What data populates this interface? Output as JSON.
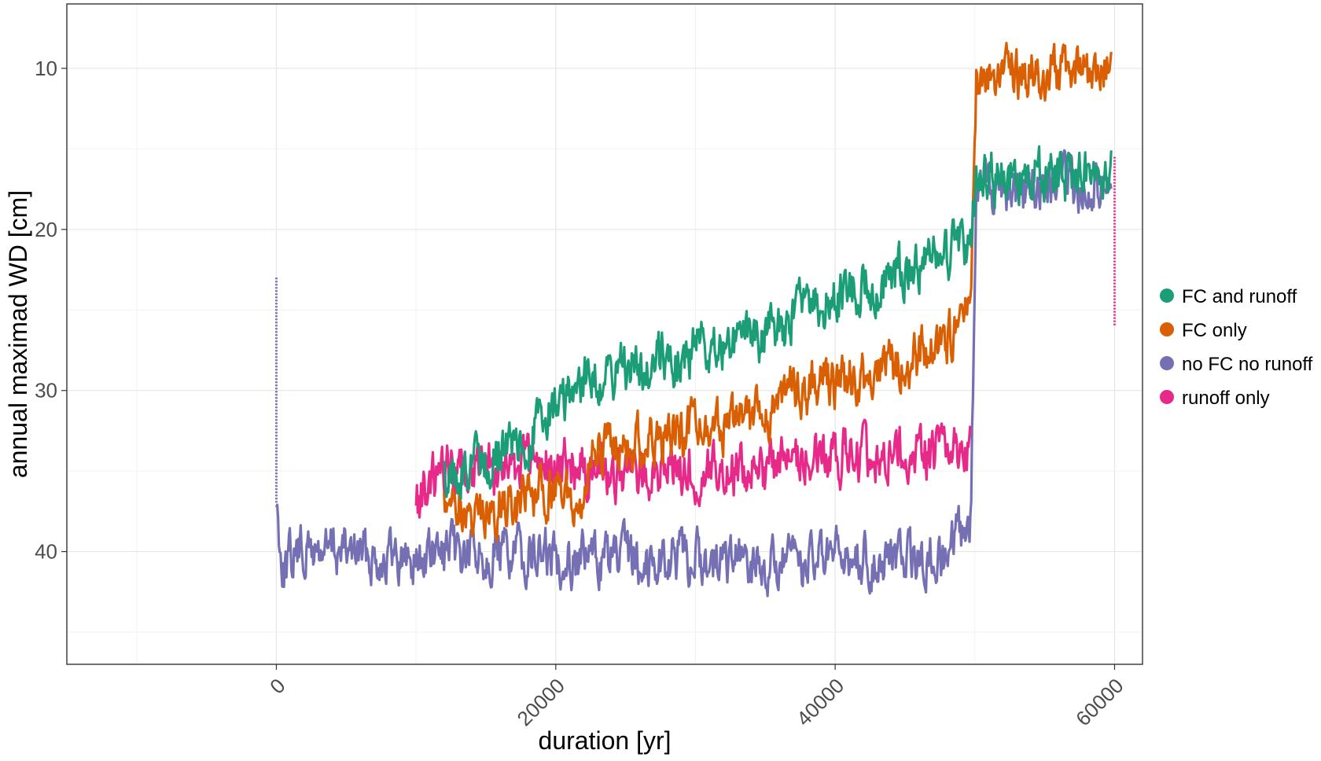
{
  "chart_data": {
    "type": "line",
    "title": "",
    "xlabel": "duration [yr]",
    "ylabel": "annual maximad WD [cm]",
    "x_range": [
      -15000,
      62000
    ],
    "y_range": [
      47,
      6
    ],
    "y_reversed": true,
    "x_ticks": [
      0,
      20000,
      40000,
      60000
    ],
    "x_tick_labels": [
      "0",
      "20000",
      "40000",
      "60000"
    ],
    "y_ticks": [
      10,
      20,
      30,
      40
    ],
    "y_tick_labels": [
      "10",
      "20",
      "30",
      "40"
    ],
    "grid": true,
    "legend_position": "right",
    "series": [
      {
        "name": "FC and runoff",
        "color": "#1b9e77",
        "start_x": 12000,
        "key_points": [
          [
            12000,
            35.5
          ],
          [
            15000,
            34.5
          ],
          [
            20000,
            31.5
          ],
          [
            22000,
            29.5
          ],
          [
            25000,
            28.5
          ],
          [
            30000,
            27.5
          ],
          [
            35000,
            26.5
          ],
          [
            38000,
            25
          ],
          [
            40000,
            24.5
          ],
          [
            45000,
            22.5
          ],
          [
            48000,
            21.5
          ],
          [
            49700,
            20.5
          ],
          [
            50100,
            16.5
          ],
          [
            55000,
            17
          ],
          [
            59800,
            16.5
          ]
        ]
      },
      {
        "name": "FC only",
        "color": "#d95f02",
        "start_x": 12000,
        "key_points": [
          [
            12000,
            37
          ],
          [
            15000,
            37.5
          ],
          [
            18000,
            37
          ],
          [
            20000,
            36
          ],
          [
            22000,
            36.5
          ],
          [
            22500,
            34
          ],
          [
            25000,
            33.5
          ],
          [
            30000,
            32.5
          ],
          [
            35000,
            31.5
          ],
          [
            37000,
            30
          ],
          [
            40000,
            29.5
          ],
          [
            45000,
            28
          ],
          [
            48000,
            27
          ],
          [
            49700,
            25.5
          ],
          [
            50100,
            10.5
          ],
          [
            55000,
            10.3
          ],
          [
            59800,
            10
          ]
        ]
      },
      {
        "name": "no FC no runoff",
        "color": "#7570b3",
        "start_x": 0,
        "key_points": [
          [
            0,
            37
          ],
          [
            500,
            41
          ],
          [
            1500,
            40
          ],
          [
            5000,
            40
          ],
          [
            10000,
            40.5
          ],
          [
            15000,
            40
          ],
          [
            20000,
            40.3
          ],
          [
            25000,
            40.5
          ],
          [
            30000,
            40.5
          ],
          [
            35000,
            41
          ],
          [
            40000,
            40.5
          ],
          [
            45000,
            40.5
          ],
          [
            48000,
            40.5
          ],
          [
            49700,
            38
          ],
          [
            50100,
            17
          ],
          [
            55000,
            17.5
          ],
          [
            59800,
            17
          ]
        ]
      },
      {
        "name": "runoff only",
        "color": "#e7298a",
        "start_x": 10000,
        "key_points": [
          [
            10000,
            37
          ],
          [
            12000,
            35
          ],
          [
            15000,
            35
          ],
          [
            20000,
            34.5
          ],
          [
            25000,
            35
          ],
          [
            30000,
            35
          ],
          [
            35000,
            35
          ],
          [
            37000,
            34
          ],
          [
            40000,
            34
          ],
          [
            45000,
            34
          ],
          [
            48000,
            34
          ],
          [
            49700,
            33.5
          ]
        ]
      }
    ],
    "vertical_markers": [
      {
        "name": "start spike",
        "x": 0,
        "y_from": 23,
        "y_to": 37,
        "color": "#7570b3"
      },
      {
        "name": "end drop",
        "x": 60000,
        "y_from": 15.5,
        "y_to": 26,
        "color": "#e7298a"
      }
    ]
  }
}
